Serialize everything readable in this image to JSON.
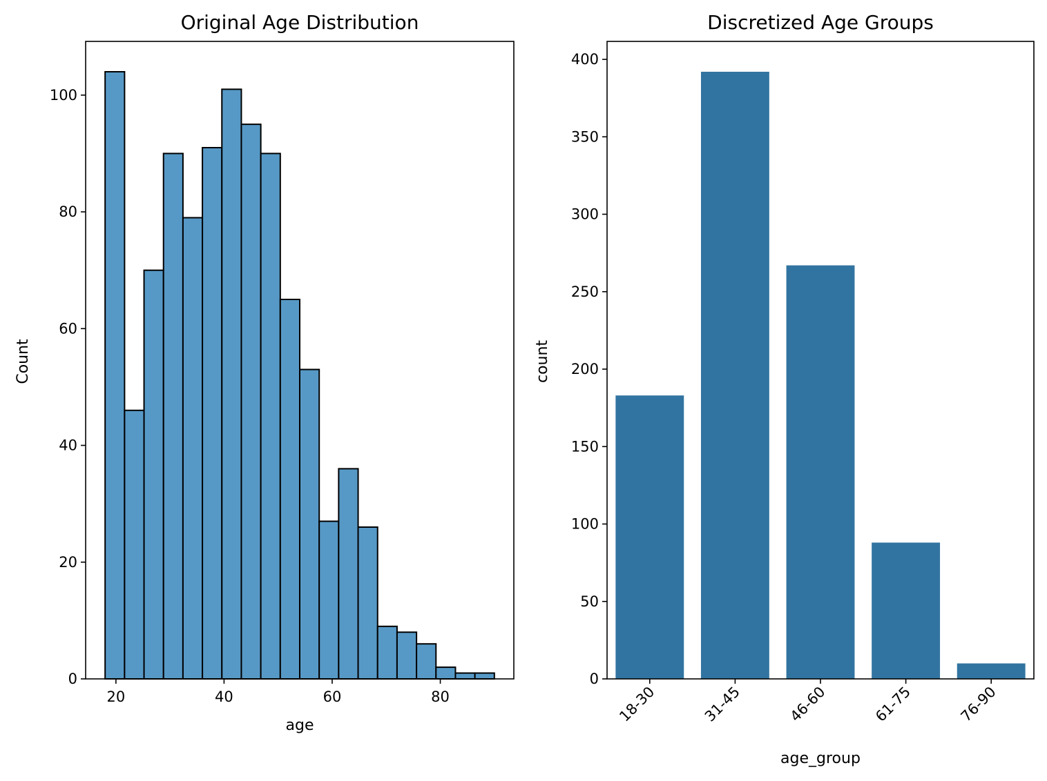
{
  "colors": {
    "hist_fill": "#5799c6",
    "hist_edge": "#000000",
    "bar_fill": "#3274a1"
  },
  "chart_data": [
    {
      "type": "histogram",
      "title": "Original Age Distribution",
      "xlabel": "age",
      "ylabel": "Count",
      "xlim": [
        14.4,
        93.6
      ],
      "ylim": [
        0,
        109.2
      ],
      "xticks": [
        20,
        40,
        60,
        80
      ],
      "yticks": [
        0,
        20,
        40,
        60,
        80,
        100
      ],
      "grid": false,
      "bins": [
        {
          "x0": 18.0,
          "x1": 21.6,
          "count": 104
        },
        {
          "x0": 21.6,
          "x1": 25.2,
          "count": 46
        },
        {
          "x0": 25.2,
          "x1": 28.8,
          "count": 70
        },
        {
          "x0": 28.8,
          "x1": 32.4,
          "count": 90
        },
        {
          "x0": 32.4,
          "x1": 36.0,
          "count": 79
        },
        {
          "x0": 36.0,
          "x1": 39.6,
          "count": 91
        },
        {
          "x0": 39.6,
          "x1": 43.2,
          "count": 101
        },
        {
          "x0": 43.2,
          "x1": 46.8,
          "count": 95
        },
        {
          "x0": 46.8,
          "x1": 50.4,
          "count": 90
        },
        {
          "x0": 50.4,
          "x1": 54.0,
          "count": 65
        },
        {
          "x0": 54.0,
          "x1": 57.6,
          "count": 53
        },
        {
          "x0": 57.6,
          "x1": 61.2,
          "count": 27
        },
        {
          "x0": 61.2,
          "x1": 64.8,
          "count": 36
        },
        {
          "x0": 64.8,
          "x1": 68.4,
          "count": 26
        },
        {
          "x0": 68.4,
          "x1": 72.0,
          "count": 9
        },
        {
          "x0": 72.0,
          "x1": 75.6,
          "count": 8
        },
        {
          "x0": 75.6,
          "x1": 79.2,
          "count": 6
        },
        {
          "x0": 79.2,
          "x1": 82.8,
          "count": 2
        },
        {
          "x0": 82.8,
          "x1": 86.4,
          "count": 1
        },
        {
          "x0": 86.4,
          "x1": 90.0,
          "count": 1
        }
      ]
    },
    {
      "type": "bar",
      "title": "Discretized Age Groups",
      "xlabel": "age_group",
      "ylabel": "count",
      "categories": [
        "18-30",
        "31-45",
        "46-60",
        "61-75",
        "76-90"
      ],
      "values": [
        183,
        392,
        267,
        88,
        10
      ],
      "ylim": [
        0,
        411.6
      ],
      "yticks": [
        0,
        50,
        100,
        150,
        200,
        250,
        300,
        350,
        400
      ],
      "xtick_rotation": 45,
      "grid": false
    }
  ]
}
